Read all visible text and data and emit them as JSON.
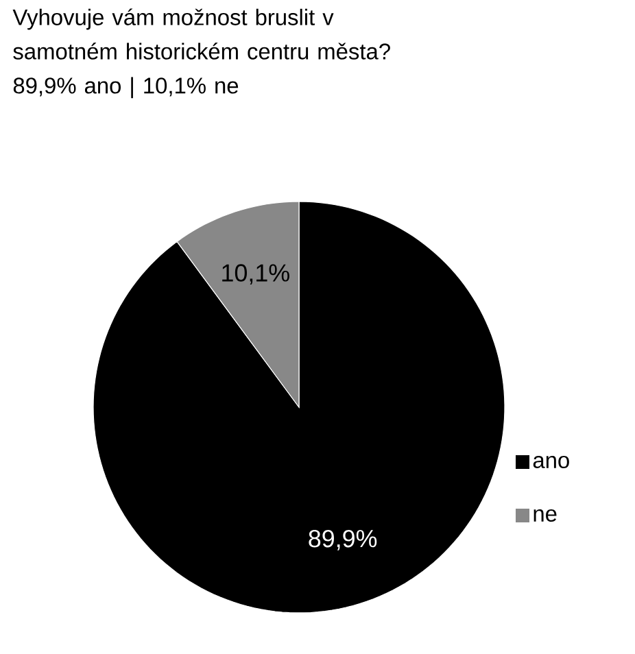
{
  "chart_data": {
    "type": "pie",
    "title": "Vyhovuje vám možnost bruslit v samotném historickém centru města?",
    "subtitle": "89,9% ano | 10,1% ne",
    "categories": [
      "ano",
      "ne"
    ],
    "values": [
      89.9,
      10.1
    ],
    "colors": [
      "#000000",
      "#888888"
    ],
    "value_labels": [
      "89,9%",
      "10,1%"
    ],
    "legend": "right"
  }
}
